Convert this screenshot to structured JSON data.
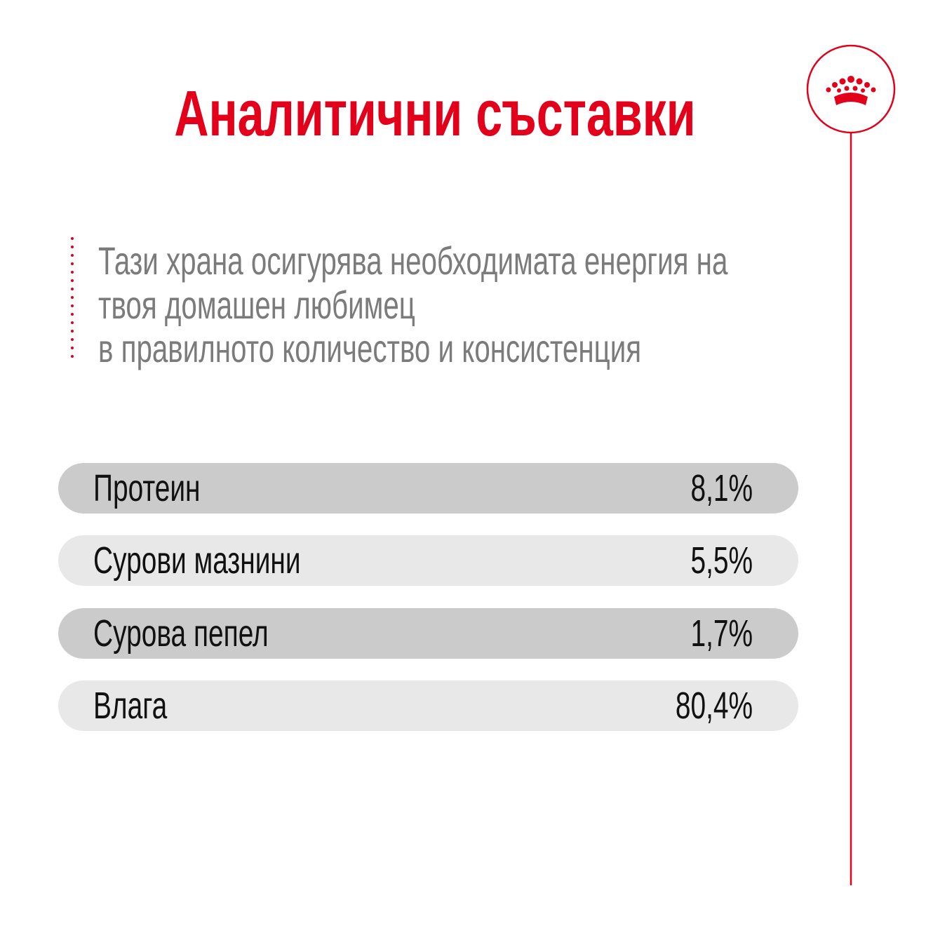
{
  "title": "Аналитични съставки",
  "description": [
    "Тази храна осигурява необходимата енергия на",
    "твоя домашен любимец",
    "в правилното количество и консистенция"
  ],
  "table": {
    "rows": [
      [
        "Протеин",
        "8,1%"
      ],
      [
        "Сурови мазнини",
        "5,5%"
      ],
      [
        "Сурова пепел",
        "1,7%"
      ],
      [
        "Влага",
        "80,4%"
      ]
    ]
  }
}
